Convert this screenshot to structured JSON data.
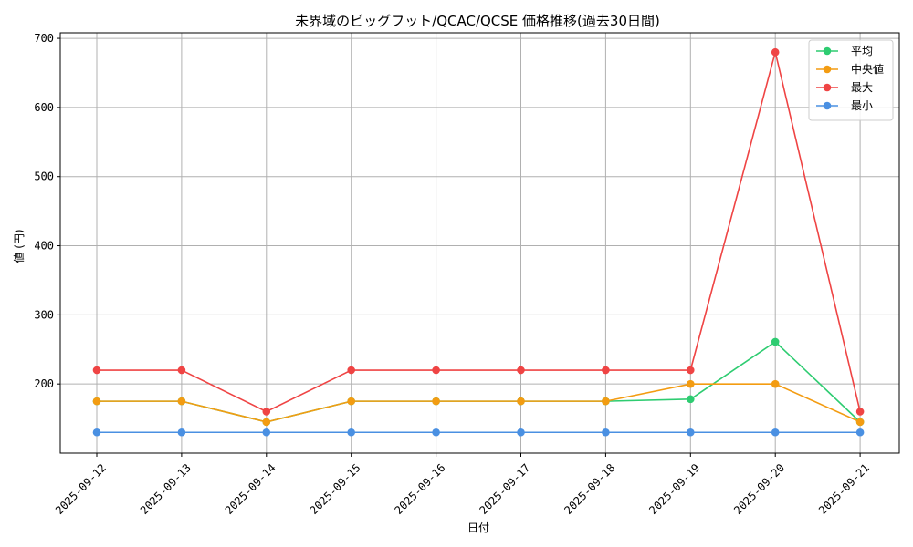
{
  "chart_data": {
    "type": "line",
    "title": "未界域のビッグフット/QCAC/QCSE 価格推移(過去30日間)",
    "xlabel": "日付",
    "ylabel": "値 (円)",
    "categories": [
      "2025-09-12",
      "2025-09-13",
      "2025-09-14",
      "2025-09-15",
      "2025-09-16",
      "2025-09-17",
      "2025-09-18",
      "2025-09-19",
      "2025-09-20",
      "2025-09-21"
    ],
    "ylim": [
      100,
      708
    ],
    "yticks": [
      200,
      300,
      400,
      500,
      600,
      700
    ],
    "grid": true,
    "legend_position": "top-right",
    "series": [
      {
        "name": "平均",
        "color": "#2ecc71",
        "values": [
          175,
          175,
          145,
          175,
          175,
          175,
          175,
          178,
          261,
          145
        ]
      },
      {
        "name": "中央値",
        "color": "#f39c12",
        "values": [
          175,
          175,
          145,
          175,
          175,
          175,
          175,
          200,
          200,
          145
        ]
      },
      {
        "name": "最大",
        "color": "#ef4444",
        "values": [
          220,
          220,
          160,
          220,
          220,
          220,
          220,
          220,
          680,
          160
        ]
      },
      {
        "name": "最小",
        "color": "#4a90e2",
        "values": [
          130,
          130,
          130,
          130,
          130,
          130,
          130,
          130,
          130,
          130
        ]
      }
    ]
  }
}
